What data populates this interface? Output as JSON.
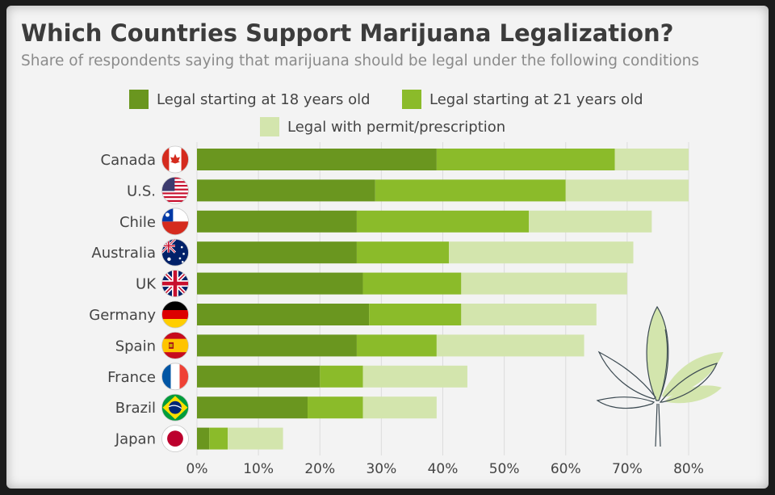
{
  "title": "Which Countries Support Marijuana Legalization?",
  "subtitle": "Share of respondents saying that marijuana should be legal under the following conditions",
  "colors": {
    "legal_18": "#6a961f",
    "legal_21": "#8bbb2a",
    "permit": "#d3e5ad",
    "background": "#f3f3f3",
    "grid": "#dcdcdc"
  },
  "legend": [
    {
      "label": "Legal starting at 18 years old",
      "color": "#6a961f"
    },
    {
      "label": "Legal starting at 21 years old",
      "color": "#8bbb2a"
    },
    {
      "label": "Legal with permit/prescription",
      "color": "#d3e5ad"
    }
  ],
  "decoration": {
    "icon": "cannabis-leaf-icon"
  },
  "chart_data": {
    "type": "bar",
    "orientation": "horizontal",
    "stacked": true,
    "categories": [
      "Canada",
      "U.S.",
      "Chile",
      "Australia",
      "UK",
      "Germany",
      "Spain",
      "France",
      "Brazil",
      "Japan"
    ],
    "flags": [
      "canada-flag-icon",
      "us-flag-icon",
      "chile-flag-icon",
      "australia-flag-icon",
      "uk-flag-icon",
      "germany-flag-icon",
      "spain-flag-icon",
      "france-flag-icon",
      "brazil-flag-icon",
      "japan-flag-icon"
    ],
    "series": [
      {
        "name": "Legal starting at 18 years old",
        "values": [
          39,
          29,
          26,
          26,
          27,
          28,
          26,
          20,
          18,
          2
        ]
      },
      {
        "name": "Legal starting at 21 years old",
        "values": [
          29,
          31,
          28,
          15,
          16,
          15,
          13,
          7,
          9,
          3
        ]
      },
      {
        "name": "Legal with permit/prescription",
        "values": [
          12,
          20,
          20,
          30,
          27,
          22,
          24,
          17,
          12,
          9
        ]
      }
    ],
    "xlim": [
      0,
      80
    ],
    "xticks": [
      "0%",
      "10%",
      "20%",
      "30%",
      "40%",
      "50%",
      "60%",
      "70%",
      "80%"
    ],
    "grid": true,
    "legend_position": "top"
  }
}
